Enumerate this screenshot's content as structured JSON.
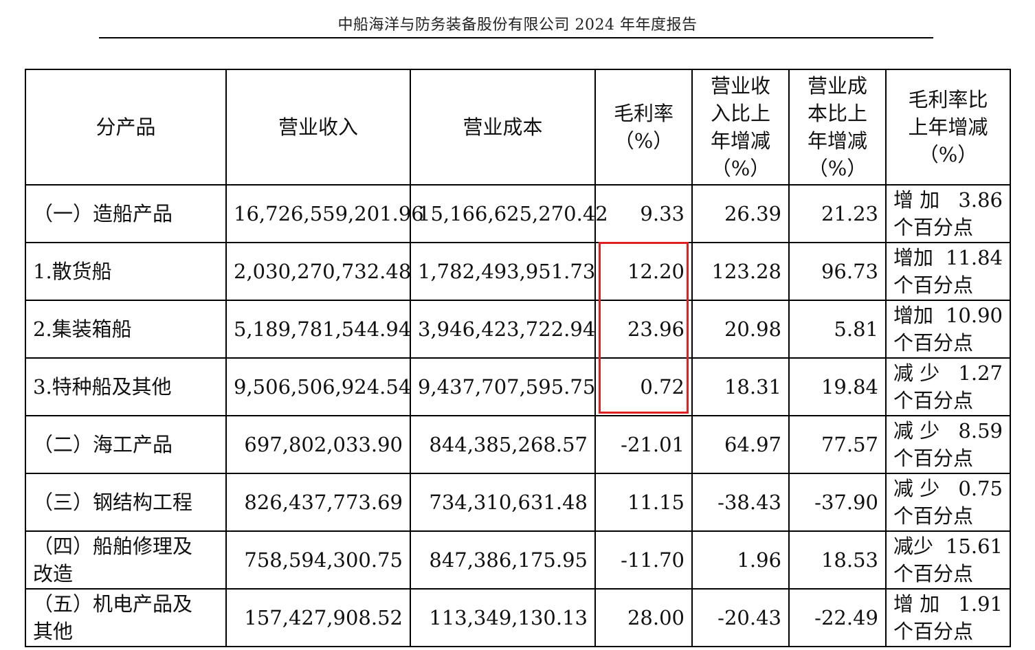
{
  "page_header": "中船海洋与防务装备股份有限公司 2024 年年度报告",
  "highlight_color": "#e02020",
  "table": {
    "headers": {
      "product": "分产品",
      "revenue": "营业收入",
      "cost": "营业成本",
      "gross_margin": [
        "毛利率",
        "（%）"
      ],
      "revenue_change": [
        "营业收",
        "入比上",
        "年增减",
        "（%）"
      ],
      "cost_change": [
        "营业成",
        "本比上",
        "年增减",
        "（%）"
      ],
      "margin_change": [
        "毛利率比",
        "上年增减",
        "（%）"
      ]
    },
    "rows": [
      {
        "product": [
          "（一）造船产品"
        ],
        "revenue": "16,726,559,201.96",
        "cost": "15,166,625,270.42",
        "gross_margin": "9.33",
        "revenue_change": "26.39",
        "cost_change": "21.23",
        "margin_change": {
          "direction": "增 加",
          "value": "3.86",
          "unit": "个百分点"
        }
      },
      {
        "product": [
          "1.散货船"
        ],
        "revenue": "2,030,270,732.48",
        "cost": "1,782,493,951.73",
        "gross_margin": "12.20",
        "revenue_change": "123.28",
        "cost_change": "96.73",
        "margin_change": {
          "direction": "增加",
          "value": "11.84",
          "unit": "个百分点"
        }
      },
      {
        "product": [
          "2.集装箱船"
        ],
        "revenue": "5,189,781,544.94",
        "cost": "3,946,423,722.94",
        "gross_margin": "23.96",
        "revenue_change": "20.98",
        "cost_change": "5.81",
        "margin_change": {
          "direction": "增加",
          "value": "10.90",
          "unit": "个百分点"
        }
      },
      {
        "product": [
          "3.特种船及其他"
        ],
        "revenue": "9,506,506,924.54",
        "cost": "9,437,707,595.75",
        "gross_margin": "0.72",
        "revenue_change": "18.31",
        "cost_change": "19.84",
        "margin_change": {
          "direction": "减 少",
          "value": "1.27",
          "unit": "个百分点"
        }
      },
      {
        "product": [
          "（二）海工产品"
        ],
        "revenue": "697,802,033.90",
        "cost": "844,385,268.57",
        "gross_margin": "-21.01",
        "revenue_change": "64.97",
        "cost_change": "77.57",
        "margin_change": {
          "direction": "减 少",
          "value": "8.59",
          "unit": "个百分点"
        }
      },
      {
        "product": [
          "（三）钢结构工程"
        ],
        "revenue": "826,437,773.69",
        "cost": "734,310,631.48",
        "gross_margin": "11.15",
        "revenue_change": "-38.43",
        "cost_change": "-37.90",
        "margin_change": {
          "direction": "减 少",
          "value": "0.75",
          "unit": "个百分点"
        }
      },
      {
        "product": [
          "（四）船舶修理及",
          "改造"
        ],
        "revenue": "758,594,300.75",
        "cost": "847,386,175.95",
        "gross_margin": "-11.70",
        "revenue_change": "1.96",
        "cost_change": "18.53",
        "margin_change": {
          "direction": "减少",
          "value": "15.61",
          "unit": "个百分点"
        }
      },
      {
        "product": [
          "（五）机电产品及",
          "其他"
        ],
        "revenue": "157,427,908.52",
        "cost": "113,349,130.13",
        "gross_margin": "28.00",
        "revenue_change": "-20.43",
        "cost_change": "-22.49",
        "margin_change": {
          "direction": "增 加",
          "value": "1.91",
          "unit": "个百分点"
        }
      }
    ]
  }
}
